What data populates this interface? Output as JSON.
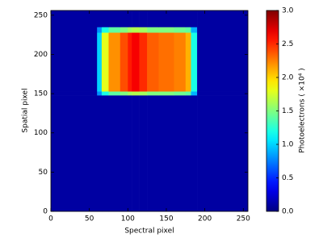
{
  "chart_data": {
    "type": "heatmap",
    "xlabel": "Spectral pixel",
    "ylabel": "Spatial pixel",
    "colorbar_label": "Photoelectrons ( ×10⁴ )",
    "colormap": "jet",
    "xlim": [
      0,
      256
    ],
    "ylim": [
      0,
      256
    ],
    "xticks": [
      0,
      50,
      100,
      150,
      200,
      250
    ],
    "yticks": [
      0,
      50,
      100,
      150,
      200,
      250
    ],
    "clim": [
      0,
      3
    ],
    "cticks": [
      {
        "value": 0,
        "label": "0.0"
      },
      0.5,
      {
        "value": 1,
        "label": "1.0"
      },
      1.5,
      {
        "value": 2,
        "label": "2.0"
      },
      2.5,
      {
        "value": 3,
        "label": "3.0"
      }
    ],
    "x": [
      0,
      60,
      66,
      75,
      90,
      100,
      105,
      115,
      125,
      140,
      160,
      175,
      182,
      190,
      256
    ],
    "y": [
      0,
      148,
      153,
      228,
      235,
      256
    ],
    "z": [
      [
        0.1,
        0.1,
        0.1,
        0.1,
        0.1,
        0.1,
        0.1,
        0.1,
        0.1,
        0.1,
        0.1,
        0.1,
        0.1,
        0.1
      ],
      [
        0.1,
        0.8,
        1.2,
        1.4,
        1.5,
        1.6,
        1.65,
        1.6,
        1.5,
        1.5,
        1.45,
        1.4,
        0.9,
        0.1
      ],
      [
        0.1,
        1.0,
        1.8,
        2.2,
        2.4,
        2.55,
        2.65,
        2.5,
        2.35,
        2.3,
        2.25,
        2.1,
        1.2,
        0.1
      ],
      [
        0.1,
        0.8,
        1.2,
        1.4,
        1.5,
        1.6,
        1.65,
        1.6,
        1.5,
        1.5,
        1.45,
        1.4,
        0.9,
        0.1
      ],
      [
        0.1,
        0.1,
        0.1,
        0.1,
        0.1,
        0.1,
        0.1,
        0.1,
        0.1,
        0.1,
        0.1,
        0.1,
        0.1,
        0.1
      ]
    ]
  }
}
